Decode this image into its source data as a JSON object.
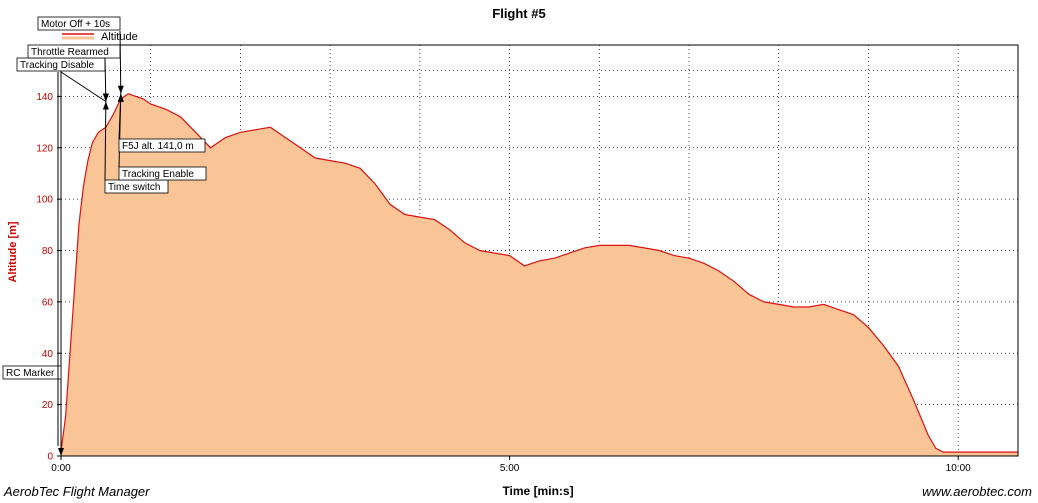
{
  "footer": {
    "left": "AerobTec Flight Manager",
    "right": "www.aerobtec.com"
  },
  "chart_data": {
    "type": "area",
    "title": "Flight #5",
    "xlabel": "Time [min:s]",
    "ylabel": "Altitude [m]",
    "x_unit": "seconds",
    "xlim": [
      0,
      640
    ],
    "ylim": [
      0,
      160
    ],
    "xticks": [
      {
        "value": 0,
        "label": "0:00"
      },
      {
        "value": 300,
        "label": "5:00"
      },
      {
        "value": 600,
        "label": "10:00"
      }
    ],
    "yticks": [
      0,
      20,
      40,
      60,
      80,
      100,
      120,
      140
    ],
    "grid": true,
    "legend": {
      "position": "top-left",
      "entries": [
        "Altitude"
      ]
    },
    "colors": {
      "line": "#dd1111",
      "fill": "#fac596",
      "axis_text": "#cc0000"
    },
    "series": [
      {
        "name": "Altitude",
        "x": [
          0,
          3,
          6,
          9,
          12,
          15,
          18,
          21,
          25,
          30,
          35,
          40,
          45,
          50,
          55,
          60,
          70,
          80,
          90,
          100,
          110,
          120,
          130,
          140,
          150,
          160,
          170,
          180,
          190,
          200,
          210,
          220,
          230,
          240,
          250,
          260,
          270,
          280,
          290,
          300,
          310,
          320,
          330,
          340,
          350,
          360,
          370,
          380,
          390,
          400,
          410,
          420,
          430,
          440,
          450,
          460,
          470,
          480,
          490,
          500,
          510,
          520,
          530,
          540,
          550,
          560,
          570,
          580,
          585,
          590,
          595,
          600,
          605,
          610,
          620,
          630,
          640
        ],
        "y": [
          2,
          15,
          40,
          65,
          90,
          105,
          115,
          122,
          126,
          128,
          133,
          139,
          141,
          140,
          139,
          137,
          135,
          132,
          126,
          120,
          124,
          126,
          127,
          128,
          124,
          120,
          116,
          115,
          114,
          112,
          106,
          98,
          94,
          93,
          92,
          88,
          83,
          80,
          79,
          78,
          74,
          76,
          77,
          79,
          81,
          82,
          82,
          82,
          81,
          80,
          78,
          77,
          75,
          72,
          68,
          63,
          60,
          59,
          58,
          58,
          59,
          57,
          55,
          50,
          43,
          35,
          22,
          8,
          3,
          1.5,
          1.5,
          1.5,
          1.5,
          1.5,
          1.5,
          1.5,
          1.5
        ]
      }
    ],
    "annotations": [
      {
        "label": "RC Marker",
        "x": 0,
        "y": 0
      },
      {
        "label": "Tracking Disable",
        "x": 30,
        "y": 138
      },
      {
        "label": "Throttle Rearmed",
        "x": 30,
        "y": 138
      },
      {
        "label": "Motor Off + 10s",
        "x": 40,
        "y": 141
      },
      {
        "label": "Time switch",
        "x": 30,
        "y": 138
      },
      {
        "label": "Tracking Enable",
        "x": 40,
        "y": 141
      },
      {
        "label": "F5J alt. 141,0 m",
        "x": 40,
        "y": 141
      }
    ]
  }
}
